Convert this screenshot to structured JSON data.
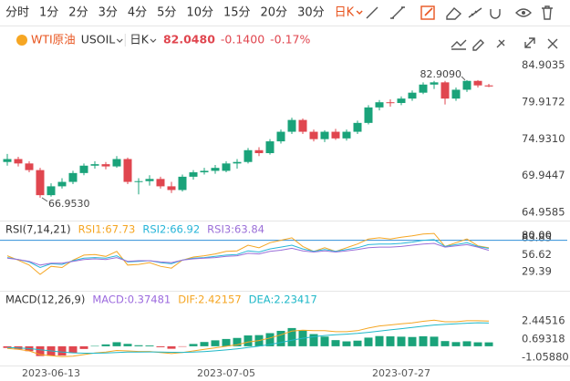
{
  "toolbar": {
    "periods": [
      "分时",
      "1分",
      "2分",
      "3分",
      "4分",
      "5分",
      "10分",
      "15分",
      "20分",
      "30分",
      "日K"
    ],
    "active": 10
  },
  "header": {
    "name": "WTI原油",
    "symbol": "USOIL",
    "period": "日K",
    "price": {
      "value": 82.048,
      "label": "82.0480"
    },
    "change": {
      "value": -0.14,
      "label": "-0.1400"
    },
    "change_pct": {
      "value": -0.17,
      "label": "-0.17%"
    }
  },
  "chart_data": [
    {
      "type": "candlestick",
      "up_color": "#1aa37a",
      "down_color": "#e0464f",
      "open": [
        71.8,
        72.2,
        71.6,
        70.7,
        67.3,
        68.5,
        69.1,
        70.3,
        71.3,
        71.5,
        71.2,
        72.2,
        69.1,
        69.2,
        69.5,
        68.5,
        68.0,
        69.8,
        70.4,
        70.6,
        70.6,
        71.6,
        71.8,
        73.4,
        73.0,
        74.6,
        75.9,
        77.5,
        75.9,
        74.9,
        75.9,
        75.0,
        75.9,
        77.1,
        79.2,
        79.9,
        79.8,
        80.4,
        81.2,
        82.3,
        82.6,
        80.4,
        81.6,
        82.8,
        82.188
      ],
      "high": [
        72.9,
        72.5,
        71.9,
        71.0,
        68.9,
        69.6,
        70.6,
        71.6,
        71.9,
        71.8,
        72.6,
        72.4,
        69.6,
        70.0,
        69.8,
        69.1,
        70.1,
        70.7,
        71.0,
        71.4,
        71.9,
        72.2,
        73.7,
        73.8,
        74.9,
        76.2,
        77.8,
        77.7,
        76.2,
        76.1,
        76.3,
        76.2,
        77.4,
        79.5,
        80.2,
        80.3,
        80.7,
        81.5,
        82.6,
        82.8,
        82.8,
        81.9,
        82.909,
        82.9,
        82.4
      ],
      "low": [
        71.3,
        71.2,
        70.4,
        66.953,
        67.1,
        68.2,
        68.8,
        70.0,
        70.9,
        70.8,
        71.0,
        68.8,
        67.4,
        68.6,
        68.2,
        67.6,
        67.8,
        69.4,
        70.1,
        70.2,
        70.4,
        70.9,
        71.6,
        72.6,
        72.8,
        74.3,
        75.6,
        75.6,
        74.6,
        74.5,
        74.8,
        74.7,
        75.6,
        76.9,
        78.8,
        79.3,
        79.5,
        80.1,
        81.0,
        81.7,
        79.6,
        80.1,
        81.3,
        81.9,
        81.95
      ],
      "close": [
        72.2,
        71.6,
        70.7,
        67.3,
        68.5,
        69.1,
        70.3,
        71.3,
        71.5,
        71.2,
        72.2,
        69.1,
        69.2,
        69.5,
        68.5,
        68.0,
        69.8,
        70.4,
        70.6,
        71.0,
        71.6,
        71.8,
        73.4,
        73.0,
        74.6,
        75.9,
        77.5,
        75.9,
        74.9,
        75.9,
        75.0,
        75.9,
        77.1,
        79.2,
        79.9,
        79.8,
        80.4,
        81.2,
        82.3,
        82.6,
        80.4,
        81.6,
        82.8,
        82.188,
        82.048
      ],
      "ylim": [
        64.1,
        86.6
      ],
      "yticks": [
        84.9035,
        79.9172,
        {
          "value": 74.931,
          "label": "74.9310"
        },
        69.9447,
        64.9585
      ],
      "annotations": [
        {
          "label": "82.9090",
          "value": 82.909,
          "of": "high"
        },
        {
          "label": "66.9530",
          "value": 66.953,
          "of": "low"
        }
      ]
    },
    {
      "type": "line",
      "title": "RSI(7,14,21)",
      "ylim": [
        0,
        100
      ],
      "yticks": [
        83.85,
        56.62,
        29.39
      ],
      "reference": {
        "value": 80,
        "label": "80.00",
        "color": "#2f8fd8"
      },
      "series": [
        {
          "label": "RSI1:67.73",
          "color": "#f5a623",
          "values": [
            55,
            48,
            40,
            25,
            38,
            36,
            48,
            56,
            57,
            54,
            62,
            40,
            41,
            44,
            38,
            35,
            48,
            53,
            55,
            58,
            62,
            63,
            72,
            68,
            76,
            80,
            84,
            70,
            62,
            68,
            62,
            68,
            74,
            82,
            84,
            82,
            85,
            87,
            90,
            91,
            70,
            76,
            82,
            71,
            67.73
          ]
        },
        {
          "label": "RSI2:66.92",
          "color": "#27b5d8",
          "values": [
            52,
            49,
            45,
            36,
            42,
            41,
            47,
            51,
            52,
            51,
            55,
            45,
            46,
            47,
            44,
            42,
            48,
            51,
            52,
            54,
            56,
            57,
            63,
            61,
            66,
            69,
            72,
            66,
            62,
            65,
            62,
            65,
            68,
            73,
            74,
            74,
            75,
            77,
            80,
            81,
            70,
            73,
            76,
            70,
            66.92
          ]
        },
        {
          "label": "RSI3:63.84",
          "color": "#9b6fd8",
          "values": [
            51,
            49,
            46,
            40,
            43,
            43,
            46,
            49,
            50,
            49,
            52,
            46,
            47,
            47,
            45,
            44,
            48,
            50,
            51,
            52,
            54,
            55,
            59,
            58,
            62,
            64,
            67,
            63,
            61,
            63,
            61,
            63,
            65,
            68,
            69,
            69,
            70,
            72,
            74,
            75,
            69,
            71,
            73,
            69,
            63.84
          ]
        }
      ]
    },
    {
      "type": "macd",
      "title": "MACD(12,26,9)",
      "ylim": [
        -1.76,
        3.93
      ],
      "yticks": [
        {
          "value": 2.44516,
          "label": "2.44516"
        },
        {
          "value": 0.69318,
          "label": "0.69318"
        },
        {
          "value": -1.0588,
          "label": "-1.05880"
        }
      ],
      "categories": [
        null,
        null,
        null,
        null,
        "2023-06-13",
        null,
        null,
        null,
        null,
        null,
        null,
        null,
        null,
        null,
        null,
        null,
        null,
        null,
        null,
        null,
        "2023-07-05",
        null,
        null,
        null,
        null,
        null,
        null,
        null,
        null,
        null,
        null,
        null,
        null,
        null,
        null,
        null,
        "2023-07-27",
        null,
        null,
        null,
        null,
        null,
        null,
        null,
        null
      ],
      "histogram": {
        "label": "MACD:0.37481",
        "label_color": "#9c6ade",
        "up_color": "#1aa37a",
        "down_color": "#e0464f",
        "values": [
          -0.16,
          -0.29,
          -0.47,
          -0.94,
          -0.91,
          -0.89,
          -0.63,
          -0.26,
          0.03,
          0.18,
          0.39,
          0.23,
          0.1,
          0.08,
          -0.09,
          -0.24,
          -0.03,
          0.22,
          0.41,
          0.57,
          0.7,
          0.8,
          1.04,
          1.07,
          1.26,
          1.48,
          1.75,
          1.56,
          1.17,
          0.93,
          0.59,
          0.47,
          0.54,
          0.83,
          0.98,
          0.95,
          0.92,
          0.89,
          0.96,
          0.92,
          0.5,
          0.4,
          0.48,
          0.38,
          0.37481
        ]
      },
      "series": [
        {
          "label": "DIF:2.42157",
          "color": "#f5a623",
          "values": [
            -0.2,
            -0.3,
            -0.45,
            -0.8,
            -0.9,
            -1.0,
            -0.95,
            -0.8,
            -0.65,
            -0.55,
            -0.4,
            -0.45,
            -0.5,
            -0.5,
            -0.6,
            -0.7,
            -0.6,
            -0.45,
            -0.3,
            -0.15,
            0.0,
            0.15,
            0.4,
            0.55,
            0.8,
            1.1,
            1.45,
            1.55,
            1.5,
            1.5,
            1.4,
            1.4,
            1.5,
            1.75,
            1.95,
            2.05,
            2.15,
            2.25,
            2.4,
            2.5,
            2.35,
            2.35,
            2.45,
            2.45,
            2.42157
          ]
        },
        {
          "label": "DEA:2.23417",
          "color": "#1fb8c8",
          "values": [
            -0.12,
            -0.156,
            -0.215,
            -0.332,
            -0.446,
            -0.557,
            -0.635,
            -0.668,
            -0.665,
            -0.642,
            -0.593,
            -0.565,
            -0.552,
            -0.541,
            -0.553,
            -0.582,
            -0.586,
            -0.559,
            -0.507,
            -0.436,
            -0.348,
            -0.249,
            -0.119,
            0.015,
            0.172,
            0.358,
            0.576,
            0.771,
            0.917,
            1.033,
            1.107,
            1.165,
            1.232,
            1.336,
            1.458,
            1.577,
            1.691,
            1.803,
            1.922,
            2.038,
            2.1,
            2.15,
            2.21,
            2.258,
            2.23417
          ]
        }
      ]
    }
  ]
}
